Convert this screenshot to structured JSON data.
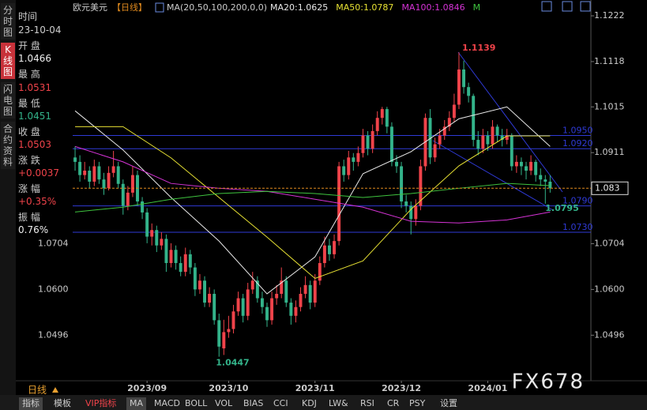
{
  "chart_data": {
    "type": "candlestick",
    "symbol": "欧元美元",
    "period": "【日线】",
    "indicator": "MA(20,50,100,200,0,0)",
    "ylim": [
      1.0387,
      1.124
    ],
    "yticks": [
      1.1222,
      1.1118,
      1.1015,
      1.0911,
      1.0704,
      1.06,
      1.0496
    ],
    "ytick_labels": [
      "1.1222",
      "1.1118",
      "1.1015",
      "1.0911",
      "1.0704",
      "1.0600",
      "1.0496"
    ],
    "xlim": [
      -0.5,
      107.5
    ],
    "x_labels": [
      {
        "value": 15,
        "label": "2023/09"
      },
      {
        "value": 32,
        "label": "2023/10"
      },
      {
        "value": 50,
        "label": "2023/11"
      },
      {
        "value": 68,
        "label": "2023/12"
      },
      {
        "value": 86,
        "label": "2024/01"
      }
    ],
    "up_color": "#f0434a",
    "down_color": "#33b38a",
    "candles": [
      [
        1.09,
        1.0925,
        1.087,
        1.089
      ],
      [
        1.089,
        1.0905,
        1.0845,
        1.086
      ],
      [
        1.086,
        1.089,
        1.085,
        1.087
      ],
      [
        1.087,
        1.088,
        1.083,
        1.0845
      ],
      [
        1.0845,
        1.0895,
        1.0835,
        1.088
      ],
      [
        1.088,
        1.089,
        1.084,
        1.085
      ],
      [
        1.085,
        1.0865,
        1.0815,
        1.083
      ],
      [
        1.083,
        1.088,
        1.0825,
        1.0865
      ],
      [
        1.0865,
        1.0915,
        1.0855,
        1.088
      ],
      [
        1.088,
        1.089,
        1.083,
        1.084
      ],
      [
        1.084,
        1.085,
        1.077,
        1.079
      ],
      [
        1.079,
        1.0835,
        1.078,
        1.082
      ],
      [
        1.082,
        1.088,
        1.081,
        1.086
      ],
      [
        1.086,
        1.087,
        1.079,
        1.08
      ],
      [
        1.08,
        1.081,
        1.076,
        1.0775
      ],
      [
        1.0775,
        1.0785,
        1.0705,
        1.072
      ],
      [
        1.072,
        1.075,
        1.07,
        1.0735
      ],
      [
        1.0735,
        1.0745,
        1.0685,
        1.07
      ],
      [
        1.07,
        1.073,
        1.069,
        1.0715
      ],
      [
        1.0715,
        1.0725,
        1.064,
        1.066
      ],
      [
        1.066,
        1.0705,
        1.065,
        1.069
      ],
      [
        1.069,
        1.07,
        1.0645,
        1.066
      ],
      [
        1.066,
        1.0675,
        1.063,
        1.064
      ],
      [
        1.064,
        1.0695,
        1.063,
        1.068
      ],
      [
        1.068,
        1.069,
        1.0635,
        1.065
      ],
      [
        1.065,
        1.066,
        1.0585,
        1.06
      ],
      [
        1.06,
        1.0635,
        1.059,
        1.062
      ],
      [
        1.062,
        1.063,
        1.056,
        1.057
      ],
      [
        1.057,
        1.0605,
        1.056,
        1.059
      ],
      [
        1.059,
        1.06,
        1.052,
        1.053
      ],
      [
        1.053,
        1.0545,
        1.0447,
        1.047
      ],
      [
        1.0466,
        1.0531,
        1.0451,
        1.0503
      ],
      [
        1.0503,
        1.054,
        1.049,
        1.051
      ],
      [
        1.051,
        1.0565,
        1.05,
        1.055
      ],
      [
        1.055,
        1.0595,
        1.054,
        1.058
      ],
      [
        1.058,
        1.059,
        1.0525,
        1.054
      ],
      [
        1.054,
        1.0615,
        1.053,
        1.06
      ],
      [
        1.06,
        1.064,
        1.059,
        1.062
      ],
      [
        1.062,
        1.063,
        1.057,
        1.058
      ],
      [
        1.058,
        1.0595,
        1.0545,
        1.056
      ],
      [
        1.056,
        1.057,
        1.0515,
        1.053
      ],
      [
        1.053,
        1.0595,
        1.052,
        1.058
      ],
      [
        1.058,
        1.061,
        1.0565,
        1.059
      ],
      [
        1.059,
        1.065,
        1.058,
        1.062
      ],
      [
        1.062,
        1.063,
        1.056,
        1.057
      ],
      [
        1.057,
        1.058,
        1.052,
        1.054
      ],
      [
        1.054,
        1.0575,
        1.0525,
        1.056
      ],
      [
        1.056,
        1.0605,
        1.055,
        1.059
      ],
      [
        1.059,
        1.063,
        1.058,
        1.061
      ],
      [
        1.061,
        1.062,
        1.0555,
        1.057
      ],
      [
        1.057,
        1.0635,
        1.056,
        1.062
      ],
      [
        1.062,
        1.0675,
        1.061,
        1.066
      ],
      [
        1.066,
        1.072,
        1.065,
        1.07
      ],
      [
        1.07,
        1.0715,
        1.0665,
        1.068
      ],
      [
        1.068,
        1.0725,
        1.067,
        1.071
      ],
      [
        1.071,
        1.089,
        1.07,
        1.088
      ],
      [
        1.088,
        1.0895,
        1.0845,
        1.086
      ],
      [
        1.086,
        1.0915,
        1.085,
        1.09
      ],
      [
        1.09,
        1.091,
        1.087,
        1.089
      ],
      [
        1.089,
        1.0925,
        1.088,
        1.091
      ],
      [
        1.091,
        1.0965,
        1.09,
        1.095
      ],
      [
        1.095,
        1.096,
        1.0905,
        1.092
      ],
      [
        1.092,
        1.0975,
        1.091,
        1.096
      ],
      [
        1.096,
        1.1005,
        1.095,
        1.099
      ],
      [
        1.099,
        1.1015,
        1.0975,
        1.101
      ],
      [
        1.101,
        1.1015,
        1.0955,
        1.097
      ],
      [
        1.097,
        1.098,
        1.088,
        1.089
      ],
      [
        1.089,
        1.0905,
        1.0865,
        1.088
      ],
      [
        1.088,
        1.089,
        1.0785,
        1.08
      ],
      [
        1.08,
        1.0815,
        1.0775,
        1.079
      ],
      [
        1.079,
        1.08,
        1.0725,
        1.076
      ],
      [
        1.076,
        1.0805,
        1.0745,
        1.079
      ],
      [
        1.079,
        1.0895,
        1.078,
        1.088
      ],
      [
        1.088,
        1.1,
        1.087,
        1.099
      ],
      [
        1.099,
        1.101,
        1.0885,
        1.09
      ],
      [
        1.09,
        1.0945,
        1.089,
        1.093
      ],
      [
        1.093,
        1.0965,
        1.092,
        1.095
      ],
      [
        1.095,
        1.0985,
        1.094,
        1.097
      ],
      [
        1.097,
        1.1005,
        1.096,
        1.099
      ],
      [
        1.099,
        1.1045,
        1.098,
        1.102
      ],
      [
        1.102,
        1.1139,
        1.101,
        1.11
      ],
      [
        1.11,
        1.112,
        1.1045,
        1.106
      ],
      [
        1.106,
        1.107,
        1.1025,
        1.104
      ],
      [
        1.104,
        1.1045,
        1.0925,
        1.094
      ],
      [
        1.094,
        1.096,
        1.0905,
        1.092
      ],
      [
        1.092,
        1.0965,
        1.091,
        1.095
      ],
      [
        1.095,
        1.096,
        1.0915,
        1.093
      ],
      [
        1.093,
        1.0985,
        1.092,
        1.097
      ],
      [
        1.097,
        1.0975,
        1.0935,
        1.095
      ],
      [
        1.095,
        1.0965,
        1.0925,
        1.094
      ],
      [
        1.094,
        1.0965,
        1.093,
        1.095
      ],
      [
        1.095,
        1.0955,
        1.087,
        1.088
      ],
      [
        1.088,
        1.0905,
        1.0865,
        1.089
      ],
      [
        1.089,
        1.09,
        1.086,
        1.088
      ],
      [
        1.088,
        1.089,
        1.085,
        1.087
      ],
      [
        1.087,
        1.0905,
        1.086,
        1.089
      ],
      [
        1.089,
        1.0895,
        1.0845,
        1.086
      ],
      [
        1.086,
        1.0875,
        1.0835,
        1.085
      ],
      [
        1.085,
        1.086,
        1.0795,
        1.0845
      ],
      [
        1.0845,
        1.086,
        1.082,
        1.083
      ]
    ],
    "series": [
      {
        "name": "MA20:1.0625",
        "color": "#e8e8e8",
        "x": [
          0,
          10,
          20,
          30,
          40,
          50,
          60,
          70,
          80,
          90,
          99
        ],
        "values": [
          1.1006,
          1.0917,
          1.0809,
          1.071,
          1.059,
          1.0674,
          1.0863,
          1.0913,
          1.0988,
          1.1015,
          1.0925
        ]
      },
      {
        "name": "MA50:1.0787",
        "color": "#e6e033",
        "x": [
          0,
          10,
          20,
          30,
          40,
          50,
          60,
          70,
          80,
          90,
          99
        ],
        "values": [
          1.097,
          1.097,
          1.0899,
          1.0809,
          1.0719,
          1.0625,
          1.0665,
          1.0782,
          1.0881,
          1.0949,
          1.0949
        ]
      },
      {
        "name": "MA100:1.0846",
        "color": "#d633d6",
        "x": [
          0,
          10,
          20,
          30,
          40,
          50,
          60,
          70,
          80,
          90,
          99
        ],
        "values": [
          1.0925,
          1.089,
          1.0841,
          1.083,
          1.0823,
          1.0805,
          1.0787,
          1.0755,
          1.0751,
          1.0758,
          1.0776
        ]
      },
      {
        "name": "M",
        "color": "#3fc43f",
        "x": [
          0,
          10,
          20,
          30,
          40,
          50,
          60,
          70,
          80,
          90,
          99
        ],
        "values": [
          1.0776,
          1.0787,
          1.0805,
          1.0818,
          1.0823,
          1.0818,
          1.0809,
          1.0818,
          1.083,
          1.0841,
          1.0836
        ]
      }
    ],
    "hlines": [
      {
        "value": 1.095,
        "label": "1.0950"
      },
      {
        "value": 1.092,
        "label": "1.0920"
      },
      {
        "value": 1.079,
        "label": "1.0790"
      },
      {
        "value": 1.073,
        "label": "1.0730"
      }
    ],
    "hline_color": "#2f3ad6",
    "last_price_color": "#e08a1e",
    "period_footer": "日线"
  },
  "sidebar_tabs": [
    "分时图",
    "K线图",
    "闪电图",
    "合约资料"
  ],
  "info_panel": {
    "time_label": "时间",
    "date": "23-10-04",
    "open_label": "开 盘",
    "high_label": "最 高",
    "low_label": "最 低",
    "close_label": "收 盘",
    "change_label": "涨 跌",
    "change": "+0.0037",
    "pct_label": "涨 幅",
    "pct": "+0.35%",
    "amp_label": "振 幅",
    "amp": "0.76%"
  },
  "toolbar": [
    "指标",
    "模板",
    "VIP指标",
    "MA",
    "MACD",
    "BOLL",
    "VOL",
    "BIAS",
    "CCI",
    "KDJ",
    "LW&",
    "RSI",
    "CR",
    "PSY",
    "设置"
  ],
  "watermark": "FX678"
}
